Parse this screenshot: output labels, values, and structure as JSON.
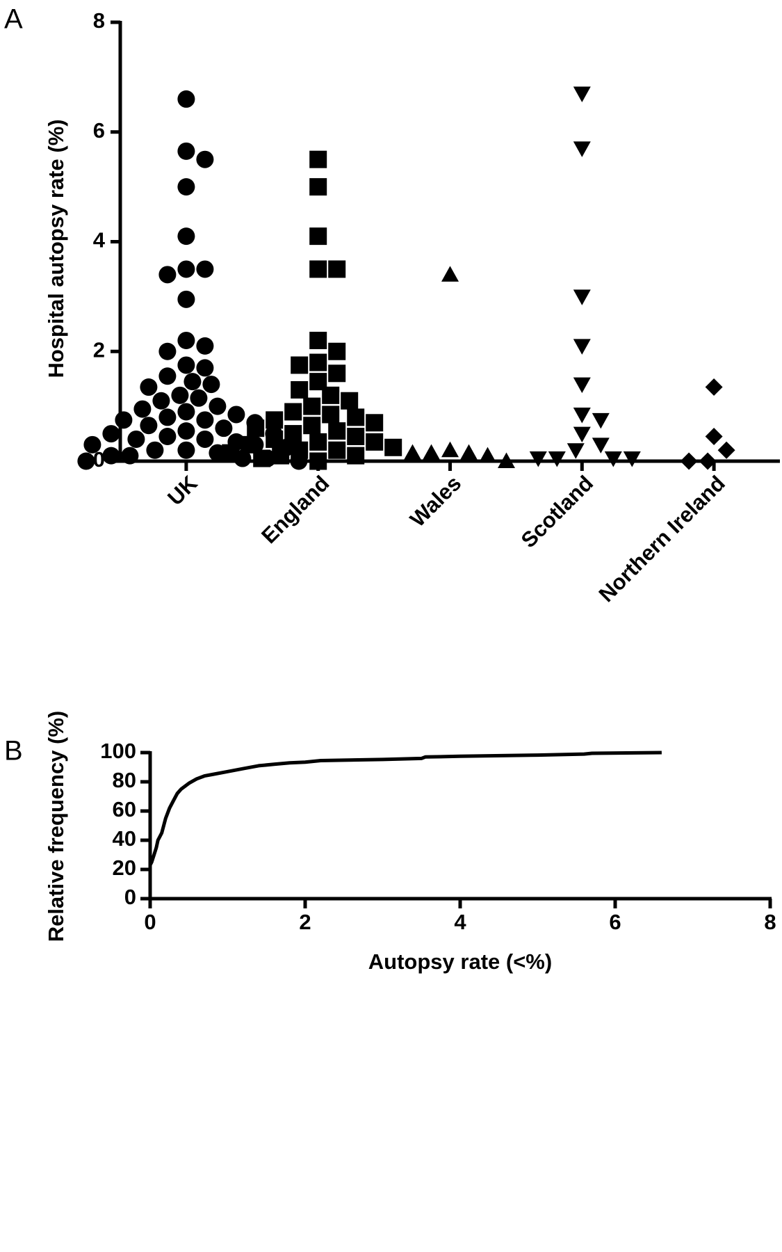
{
  "chart_data": [
    {
      "type": "dot",
      "panel_label": "A",
      "ylabel": "Hospital autopsy rate (%)",
      "ylim": [
        0,
        8
      ],
      "yticks": [
        0,
        2,
        4,
        6,
        8
      ],
      "color": "#000000",
      "series": [
        {
          "name": "UK",
          "marker": "circle",
          "values": [
            6.6,
            5.65,
            5.5,
            5.0,
            4.1,
            3.5,
            3.5,
            3.4,
            2.95,
            2.2,
            2.1,
            2.0,
            1.75,
            1.7,
            1.55,
            1.45,
            1.4,
            1.35,
            1.2,
            1.15,
            1.1,
            1.0,
            0.95,
            0.9,
            0.85,
            0.8,
            0.75,
            0.75,
            0.7,
            0.65,
            0.6,
            0.55,
            0.5,
            0.5,
            0.45,
            0.4,
            0.4,
            0.35,
            0.3,
            0.3,
            0.25,
            0.2,
            0.2,
            0.15,
            0.1,
            0.1,
            0.05,
            0.05,
            0.0,
            0.0
          ]
        },
        {
          "name": "England",
          "marker": "square",
          "values": [
            5.5,
            5.0,
            4.1,
            3.5,
            3.5,
            2.2,
            2.0,
            1.8,
            1.75,
            1.6,
            1.45,
            1.3,
            1.2,
            1.1,
            1.0,
            0.9,
            0.85,
            0.8,
            0.75,
            0.7,
            0.65,
            0.6,
            0.55,
            0.5,
            0.45,
            0.4,
            0.35,
            0.35,
            0.3,
            0.25,
            0.2,
            0.2,
            0.15,
            0.1,
            0.1,
            0.05,
            0.0
          ]
        },
        {
          "name": "Wales",
          "marker": "triangle-up",
          "values": [
            3.4,
            0.2,
            0.15,
            0.15,
            0.1,
            0.15,
            0.0
          ]
        },
        {
          "name": "Scotland",
          "marker": "triangle-down",
          "values": [
            6.7,
            5.7,
            3.0,
            2.1,
            1.4,
            0.85,
            0.75,
            0.5,
            0.3,
            0.2,
            0.05,
            0.05,
            0.05,
            0.05
          ]
        },
        {
          "name": "Northern Ireland",
          "marker": "diamond",
          "values": [
            1.35,
            0.45,
            0.2,
            0.0,
            0.0
          ]
        }
      ]
    },
    {
      "type": "line",
      "panel_label": "B",
      "xlabel": "Autopsy rate (<%)",
      "ylabel": "Relative frequency (%)",
      "xlim": [
        0,
        8
      ],
      "xticks": [
        0,
        2,
        4,
        6,
        8
      ],
      "ylim": [
        0,
        100
      ],
      "yticks": [
        0,
        20,
        40,
        60,
        80,
        100
      ],
      "color": "#000000",
      "x": [
        0,
        0.02,
        0.05,
        0.08,
        0.1,
        0.15,
        0.2,
        0.25,
        0.3,
        0.35,
        0.4,
        0.5,
        0.6,
        0.7,
        0.8,
        1.0,
        1.2,
        1.4,
        1.6,
        1.8,
        2.0,
        2.2,
        2.5,
        3.0,
        3.5,
        3.55,
        4.0,
        5.0,
        5.6,
        5.7,
        6.6
      ],
      "values": [
        23,
        25,
        30,
        35,
        40,
        45,
        55,
        62,
        67,
        72,
        75,
        79,
        82,
        84,
        85,
        87,
        89,
        91,
        92,
        93,
        93.5,
        94.5,
        94.8,
        95.3,
        96,
        97,
        97.5,
        98.3,
        99,
        99.5,
        100
      ]
    }
  ]
}
